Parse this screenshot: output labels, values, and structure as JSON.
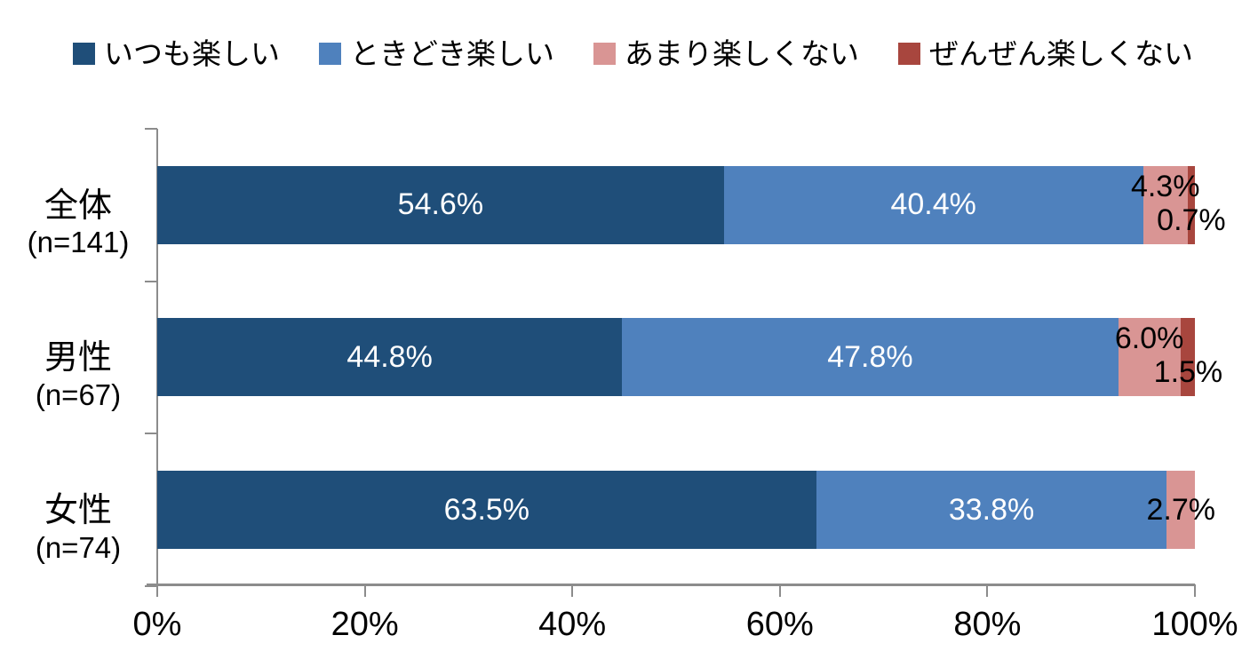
{
  "chart_data": {
    "type": "bar",
    "orientation": "horizontal",
    "stacked": true,
    "title": "",
    "legend_position": "top",
    "grid": false,
    "categories": [
      "全体",
      "男性",
      "女性"
    ],
    "category_sublabels": [
      "(n=141)",
      "(n=67)",
      "(n=74)"
    ],
    "series": [
      {
        "name": "いつも楽しい",
        "color": "#1F4E79",
        "values": [
          54.6,
          44.8,
          63.5
        ]
      },
      {
        "name": "ときどき楽しい",
        "color": "#4F81BD",
        "values": [
          40.4,
          47.8,
          33.8
        ]
      },
      {
        "name": "あまり楽しくない",
        "color": "#D99594",
        "values": [
          4.3,
          6.0,
          2.7
        ]
      },
      {
        "name": "ぜんぜん楽しくない",
        "color": "#A8463E",
        "values": [
          0.7,
          1.5,
          0.0
        ]
      }
    ],
    "data_labels": [
      [
        "54.6%",
        "40.4%",
        "4.3%",
        "0.7%"
      ],
      [
        "44.8%",
        "47.8%",
        "6.0%",
        "1.5%"
      ],
      [
        "63.5%",
        "33.8%",
        "2.7%",
        null
      ]
    ],
    "x_axis": {
      "ticks": [
        "0%",
        "20%",
        "40%",
        "60%",
        "80%",
        "100%"
      ],
      "range": [
        0,
        100
      ]
    },
    "colors": {
      "axis": "#8c8c8c",
      "inside_label": "#ffffff",
      "outside_label": "#000000"
    }
  }
}
